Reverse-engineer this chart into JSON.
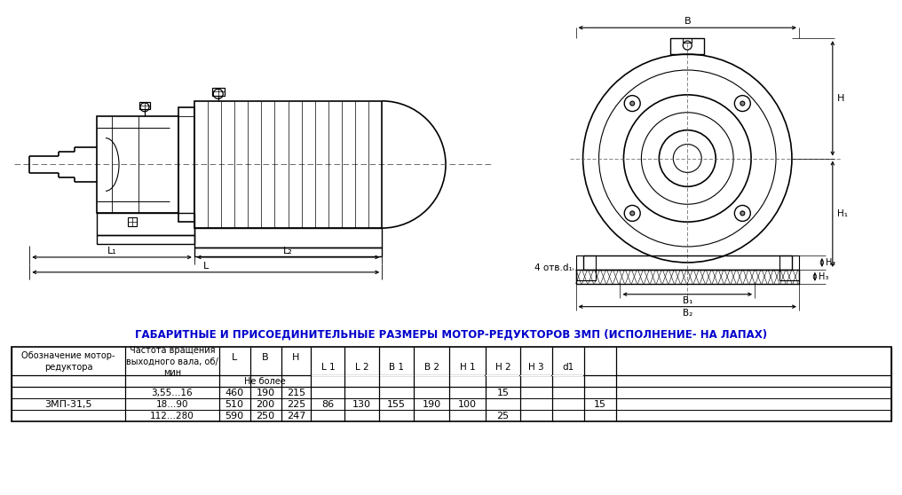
{
  "title": "ГАБАРИТНЫЕ И ПРИСОЕДИНИТЕЛЬНЫЕ РАЗМЕРЫ МОТОР-РЕДУКТОРОВ 3МП (ИСПОЛНЕНИЕ- НА ЛАПАХ)",
  "model": "3МП-31,5",
  "rows": [
    {
      "freq": "3,55...16",
      "L": "460",
      "B": "190",
      "H": "215",
      "L1": "86",
      "L2": "130",
      "B1": "155",
      "B2": "190",
      "H1": "100",
      "H2": "15",
      "H3": "",
      "d1": "15"
    },
    {
      "freq": "18...90",
      "L": "510",
      "B": "200",
      "H": "225",
      "L1": "",
      "L2": "",
      "B1": "",
      "B2": "",
      "H1": "",
      "H2": "",
      "H3": "",
      "d1": ""
    },
    {
      "freq": "112...280",
      "L": "590",
      "B": "250",
      "H": "247",
      "L1": "",
      "L2": "",
      "B1": "",
      "B2": "",
      "H1": "",
      "H2": "25",
      "H3": "",
      "d1": ""
    }
  ],
  "bg_color": "#ffffff",
  "line_color": "#000000",
  "title_color": "#0000cc"
}
